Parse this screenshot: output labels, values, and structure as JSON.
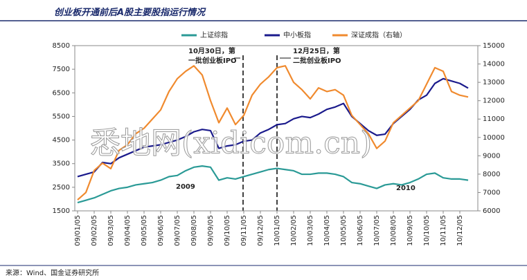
{
  "chart_data": {
    "type": "line",
    "title": "创业板开通前后A股主要股指运行情况",
    "source": "来源：Wind、国金证券研究所",
    "watermark": "悉地网(xidicom.cn)",
    "annotations": [
      "10月30日，第",
      "一批创业板IPO",
      "12月25日，第",
      "二批创业板IPO",
      "2009",
      "2010"
    ],
    "categories": [
      "09/01/05",
      null,
      "09/02/05",
      null,
      "09/03/05",
      null,
      "09/04/05",
      null,
      "09/05/05",
      null,
      "09/06/05",
      null,
      "09/07/05",
      null,
      "09/08/05",
      null,
      "09/09/05",
      null,
      "09/10/05",
      null,
      "09/11/05",
      null,
      "09/12/05",
      null,
      "10/01/05",
      null,
      "10/02/05",
      null,
      "10/03/05",
      null,
      "10/04/05",
      null,
      "10/05/05",
      null,
      "10/06/05",
      null,
      "10/07/05",
      null,
      "10/08/05",
      null,
      "10/09/05",
      null,
      "10/10/05",
      null,
      "10/11/05",
      null,
      "10/12/05",
      null
    ],
    "series": [
      {
        "name": "上证综指",
        "color": "#2a9a96",
        "values": [
          1850,
          1950,
          2050,
          2200,
          2350,
          2450,
          2500,
          2600,
          2650,
          2700,
          2800,
          2950,
          3000,
          3200,
          3350,
          3400,
          3350,
          2800,
          2900,
          2850,
          2950,
          3050,
          3150,
          3250,
          3300,
          3250,
          3200,
          3050,
          3050,
          3100,
          3100,
          3050,
          2950,
          2700,
          2650,
          2550,
          2450,
          2600,
          2650,
          2600,
          2700,
          2850,
          3050,
          3100,
          2900,
          2850,
          2850,
          2800
        ]
      },
      {
        "name": "中小板指",
        "color": "#1a1a8c",
        "values": [
          2950,
          3050,
          3150,
          3550,
          3500,
          3750,
          3900,
          4050,
          4200,
          4250,
          4300,
          4400,
          4500,
          4650,
          4850,
          4950,
          4900,
          4150,
          4250,
          4300,
          4450,
          4500,
          4800,
          4950,
          5150,
          5200,
          5400,
          5500,
          5450,
          5600,
          5800,
          5900,
          6050,
          5500,
          5200,
          4900,
          4700,
          4750,
          5200,
          5500,
          5800,
          6200,
          6400,
          6900,
          7100,
          7000,
          6900,
          6700
        ]
      },
      {
        "name": "深证成指（右轴）",
        "color": "#f08a2e",
        "axis": "y2",
        "values": [
          6600,
          7000,
          8200,
          8600,
          8300,
          9300,
          9600,
          10200,
          10500,
          11000,
          11500,
          12500,
          13200,
          13600,
          13900,
          13400,
          12000,
          10800,
          11600,
          10700,
          11200,
          12300,
          12900,
          13300,
          13800,
          13900,
          13000,
          12600,
          12100,
          12700,
          12500,
          12600,
          12300,
          11200,
          10700,
          10200,
          9400,
          9800,
          10800,
          11200,
          11600,
          12000,
          12900,
          13800,
          13600,
          12500,
          12300,
          12200
        ]
      }
    ],
    "ylim": [
      1500,
      8500
    ],
    "yticks": [
      1500,
      2500,
      3500,
      4500,
      5500,
      6500,
      7500,
      8500
    ],
    "y2lim": [
      6000,
      15000
    ],
    "y2ticks": [
      6000,
      7000,
      8000,
      9000,
      10000,
      11000,
      12000,
      13000,
      14000,
      15000
    ],
    "legend": "top"
  }
}
